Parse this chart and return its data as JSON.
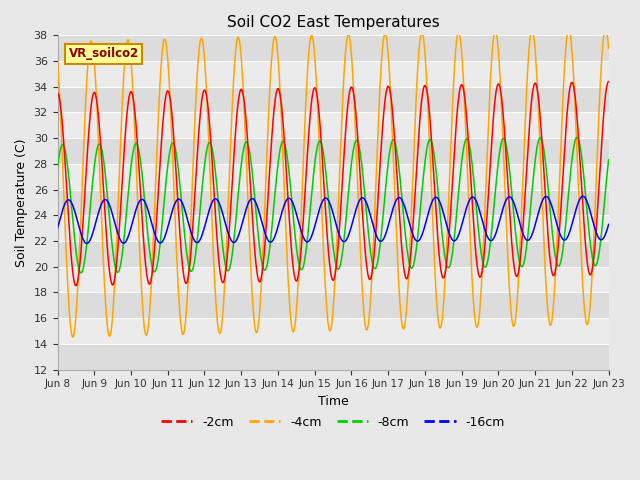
{
  "title": "Soil CO2 East Temperatures",
  "xlabel": "Time",
  "ylabel": "Soil Temperature (C)",
  "ylim": [
    12,
    38
  ],
  "xtick_labels": [
    "Jun 8",
    "Jun 9",
    "Jun 10",
    "Jun 11",
    "Jun 12",
    "Jun 13",
    "Jun 14",
    "Jun 15",
    "Jun 16",
    "Jun 17",
    "Jun 18",
    "Jun 19",
    "Jun 20",
    "Jun 21",
    "Jun 22",
    "Jun 23"
  ],
  "ytick_values": [
    12,
    14,
    16,
    18,
    20,
    22,
    24,
    26,
    28,
    30,
    32,
    34,
    36,
    38
  ],
  "colors": {
    "-2cm": "#ff0000",
    "-4cm": "#ffa500",
    "-8cm": "#00cc00",
    "-16cm": "#0000ff"
  },
  "legend_label": "VR_soilco2",
  "legend_box_color": "#ffff99",
  "legend_box_edge": "#cc8800",
  "n_days": 15,
  "points_per_day": 144,
  "mean_2cm": 26.0,
  "mean_4cm": 26.0,
  "mean_8cm": 24.5,
  "mean_16cm": 23.5,
  "trend_2cm": 0.06,
  "trend_4cm": 0.07,
  "trend_8cm": 0.04,
  "trend_16cm": 0.02,
  "amp_2cm": 7.5,
  "amp_4cm": 11.5,
  "amp_8cm": 5.0,
  "amp_16cm": 1.7,
  "phase_2cm": 1.57,
  "phase_4cm": 2.1,
  "phase_8cm": 0.7,
  "phase_16cm": -0.3,
  "band_colors": [
    "#dcdcdc",
    "#ebebeb"
  ],
  "grid_line_color": "#ffffff",
  "bg_color": "#e8e8e8"
}
